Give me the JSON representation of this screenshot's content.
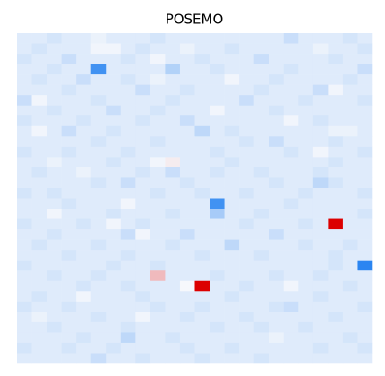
{
  "chart_data": {
    "type": "heatmap",
    "title": "POSEMO",
    "vlim": [
      -1,
      1
    ],
    "colors": {
      "negative": "#1478f0",
      "positive": "#dc0000"
    },
    "values": [
      [
        -0.1,
        -0.1,
        -0.15,
        -0.1,
        -0.1,
        -0.05,
        -0.1,
        -0.1,
        -0.1,
        -0.15,
        -0.1,
        -0.1,
        -0.1,
        -0.1,
        -0.1,
        -0.1,
        -0.1,
        -0.1,
        -0.2,
        -0.1,
        -0.1,
        -0.1,
        -0.15,
        -0.1
      ],
      [
        -0.1,
        -0.15,
        -0.1,
        -0.1,
        -0.1,
        -0.02,
        -0.02,
        -0.1,
        -0.15,
        -0.1,
        -0.1,
        -0.05,
        -0.1,
        -0.1,
        -0.15,
        -0.1,
        -0.1,
        -0.1,
        -0.1,
        -0.1,
        -0.05,
        -0.1,
        -0.1,
        -0.15
      ],
      [
        -0.15,
        -0.1,
        -0.1,
        -0.2,
        -0.1,
        -0.1,
        -0.1,
        -0.15,
        -0.1,
        -0.02,
        -0.1,
        -0.1,
        -0.15,
        -0.1,
        -0.1,
        -0.1,
        -0.2,
        -0.1,
        -0.1,
        -0.1,
        -0.1,
        -0.15,
        -0.1,
        -0.1
      ],
      [
        -0.1,
        -0.1,
        -0.15,
        -0.1,
        -0.1,
        -0.8,
        -0.1,
        -0.1,
        -0.1,
        -0.1,
        -0.3,
        -0.1,
        -0.1,
        -0.15,
        -0.1,
        -0.1,
        -0.1,
        -0.1,
        -0.15,
        -0.1,
        -0.1,
        -0.1,
        -0.1,
        -0.2
      ],
      [
        -0.1,
        -0.15,
        -0.1,
        -0.1,
        -0.2,
        -0.1,
        -0.1,
        -0.15,
        -0.1,
        -0.05,
        -0.1,
        -0.1,
        -0.1,
        -0.1,
        -0.02,
        -0.1,
        -0.1,
        -0.15,
        -0.1,
        -0.1,
        -0.1,
        -0.1,
        -0.15,
        -0.1
      ],
      [
        -0.1,
        -0.1,
        -0.1,
        -0.15,
        -0.1,
        -0.1,
        -0.1,
        -0.1,
        -0.2,
        -0.1,
        -0.1,
        -0.15,
        -0.1,
        -0.1,
        -0.1,
        -0.1,
        -0.15,
        -0.1,
        -0.1,
        -0.1,
        -0.2,
        -0.02,
        -0.1,
        -0.1
      ],
      [
        -0.2,
        -0.02,
        -0.1,
        -0.1,
        -0.1,
        -0.15,
        -0.1,
        -0.1,
        -0.1,
        -0.1,
        -0.15,
        -0.1,
        -0.1,
        -0.1,
        -0.1,
        -0.2,
        -0.1,
        -0.1,
        -0.1,
        -0.15,
        -0.1,
        -0.1,
        -0.1,
        -0.15
      ],
      [
        -0.1,
        -0.1,
        -0.15,
        -0.1,
        -0.1,
        -0.1,
        -0.2,
        -0.1,
        -0.1,
        -0.15,
        -0.1,
        -0.1,
        -0.1,
        -0.02,
        -0.1,
        -0.1,
        -0.1,
        -0.15,
        -0.1,
        -0.1,
        -0.1,
        -0.1,
        -0.1,
        -0.1
      ],
      [
        -0.15,
        -0.1,
        -0.1,
        -0.1,
        -0.15,
        -0.1,
        -0.1,
        -0.1,
        -0.15,
        -0.1,
        -0.1,
        -0.2,
        -0.1,
        -0.1,
        -0.1,
        -0.1,
        -0.1,
        -0.1,
        -0.02,
        -0.1,
        -0.15,
        -0.1,
        -0.1,
        -0.1
      ],
      [
        -0.1,
        -0.02,
        -0.1,
        -0.2,
        -0.1,
        -0.1,
        -0.15,
        -0.1,
        -0.1,
        -0.1,
        -0.1,
        -0.1,
        -0.25,
        -0.1,
        -0.15,
        -0.1,
        -0.1,
        -0.1,
        -0.1,
        -0.1,
        -0.1,
        -0.05,
        -0.05,
        -0.1
      ],
      [
        -0.1,
        -0.1,
        -0.1,
        -0.1,
        -0.1,
        -0.15,
        -0.1,
        -0.1,
        -0.1,
        -0.15,
        -0.1,
        -0.1,
        -0.1,
        -0.1,
        -0.1,
        -0.15,
        -0.1,
        -0.2,
        -0.1,
        -0.1,
        -0.1,
        -0.15,
        -0.1,
        -0.1
      ],
      [
        -0.15,
        -0.1,
        -0.1,
        -0.15,
        -0.1,
        -0.1,
        -0.1,
        -0.15,
        -0.1,
        -0.1,
        -0.1,
        -0.1,
        -0.1,
        -0.15,
        -0.1,
        -0.1,
        -0.1,
        -0.1,
        -0.15,
        -0.1,
        -0.02,
        -0.1,
        -0.1,
        -0.15
      ],
      [
        -0.1,
        -0.1,
        -0.05,
        -0.1,
        -0.1,
        -0.1,
        -0.15,
        -0.1,
        -0.1,
        -0.02,
        0.05,
        -0.1,
        -0.1,
        -0.1,
        -0.15,
        -0.1,
        -0.1,
        -0.1,
        -0.1,
        -0.1,
        -0.1,
        -0.15,
        -0.1,
        -0.1
      ],
      [
        -0.1,
        -0.15,
        -0.1,
        -0.1,
        -0.05,
        -0.1,
        -0.1,
        -0.1,
        -0.15,
        -0.1,
        -0.2,
        -0.1,
        -0.1,
        -0.15,
        -0.1,
        -0.1,
        -0.15,
        -0.1,
        -0.1,
        -0.1,
        -0.15,
        -0.1,
        -0.1,
        -0.1
      ],
      [
        -0.1,
        -0.1,
        -0.1,
        -0.1,
        -0.1,
        -0.15,
        -0.1,
        -0.2,
        -0.1,
        -0.1,
        -0.1,
        -0.15,
        -0.1,
        -0.1,
        -0.1,
        -0.1,
        -0.1,
        -0.15,
        -0.1,
        -0.1,
        -0.25,
        -0.15,
        -0.1,
        -0.1
      ],
      [
        -0.15,
        -0.1,
        -0.15,
        -0.1,
        -0.1,
        -0.1,
        -0.1,
        -0.1,
        -0.1,
        -0.15,
        -0.1,
        -0.1,
        -0.15,
        -0.1,
        -0.1,
        -0.15,
        -0.1,
        -0.1,
        -0.1,
        -0.15,
        -0.1,
        -0.1,
        -0.1,
        -0.15
      ],
      [
        -0.1,
        -0.1,
        -0.1,
        -0.15,
        -0.1,
        -0.1,
        -0.1,
        -0.02,
        -0.1,
        -0.1,
        -0.1,
        -0.1,
        -0.1,
        -0.8,
        -0.1,
        -0.1,
        -0.1,
        -0.1,
        -0.15,
        -0.1,
        -0.1,
        -0.1,
        -0.1,
        -0.1
      ],
      [
        -0.1,
        -0.1,
        -0.02,
        -0.1,
        -0.1,
        -0.1,
        -0.15,
        -0.1,
        -0.1,
        -0.1,
        -0.15,
        -0.1,
        -0.1,
        -0.35,
        -0.1,
        -0.1,
        -0.15,
        -0.1,
        -0.1,
        -0.1,
        -0.1,
        -0.1,
        -0.1,
        -0.15
      ],
      [
        -0.15,
        -0.1,
        -0.1,
        -0.1,
        -0.15,
        -0.1,
        -0.02,
        -0.1,
        -0.15,
        -0.1,
        -0.1,
        -0.1,
        -0.1,
        -0.1,
        -0.1,
        -0.15,
        -0.1,
        -0.1,
        -0.1,
        -0.15,
        -0.1,
        1,
        -0.1,
        -0.1
      ],
      [
        -0.1,
        -0.1,
        -0.15,
        -0.1,
        -0.1,
        -0.1,
        -0.1,
        -0.2,
        -0.02,
        -0.1,
        -0.1,
        -0.2,
        -0.1,
        -0.1,
        -0.1,
        -0.1,
        -0.1,
        -0.2,
        -0.1,
        -0.1,
        -0.1,
        -0.1,
        -0.1,
        -0.1
      ],
      [
        -0.1,
        -0.15,
        -0.1,
        -0.1,
        -0.1,
        -0.15,
        -0.1,
        -0.1,
        -0.1,
        -0.1,
        -0.15,
        -0.1,
        -0.1,
        -0.1,
        -0.25,
        -0.1,
        -0.1,
        -0.1,
        -0.1,
        -0.15,
        -0.1,
        -0.1,
        -0.15,
        -0.1
      ],
      [
        -0.1,
        -0.1,
        -0.1,
        -0.15,
        -0.1,
        -0.1,
        -0.1,
        -0.15,
        -0.1,
        -0.1,
        -0.1,
        -0.1,
        -0.15,
        -0.1,
        -0.1,
        -0.1,
        -0.15,
        -0.1,
        -0.1,
        -0.1,
        -0.1,
        -0.15,
        -0.1,
        -0.1
      ],
      [
        -0.15,
        -0.1,
        -0.1,
        -0.1,
        -0.1,
        -0.1,
        -0.15,
        -0.1,
        -0.1,
        -0.15,
        -0.1,
        -0.1,
        -0.1,
        -0.1,
        -0.1,
        -0.1,
        -0.1,
        -0.1,
        -0.1,
        -0.1,
        -0.1,
        -0.15,
        -0.1,
        -0.9
      ],
      [
        -0.1,
        -0.1,
        -0.15,
        -0.1,
        -0.1,
        -0.15,
        -0.1,
        -0.1,
        -0.1,
        0.25,
        -0.1,
        -0.1,
        -0.1,
        -0.15,
        -0.1,
        -0.1,
        -0.1,
        -0.15,
        -0.1,
        -0.1,
        -0.15,
        -0.1,
        -0.1,
        -0.1
      ],
      [
        -0.1,
        -0.1,
        -0.1,
        -0.1,
        -0.15,
        -0.1,
        -0.1,
        -0.15,
        -0.1,
        -0.1,
        -0.1,
        0,
        1,
        -0.1,
        -0.1,
        -0.15,
        -0.1,
        -0.1,
        -0.02,
        -0.1,
        -0.1,
        -0.1,
        -0.15,
        -0.1
      ],
      [
        -0.1,
        -0.15,
        -0.1,
        -0.1,
        -0.02,
        -0.1,
        -0.1,
        -0.1,
        -0.15,
        -0.1,
        -0.1,
        -0.1,
        -0.1,
        -0.1,
        -0.15,
        -0.1,
        -0.1,
        -0.1,
        -0.1,
        -0.1,
        -0.15,
        -0.1,
        -0.1,
        -0.1
      ],
      [
        -0.15,
        -0.1,
        -0.1,
        -0.15,
        -0.1,
        -0.1,
        -0.1,
        -0.1,
        -0.1,
        -0.15,
        -0.1,
        -0.1,
        -0.15,
        -0.1,
        -0.1,
        -0.1,
        -0.1,
        -0.15,
        -0.2,
        -0.1,
        -0.1,
        -0.1,
        -0.1,
        -0.15
      ],
      [
        -0.1,
        -0.05,
        -0.1,
        -0.1,
        -0.1,
        -0.15,
        -0.1,
        -0.1,
        -0.02,
        -0.1,
        -0.1,
        -0.15,
        -0.1,
        -0.1,
        -0.1,
        -0.15,
        -0.1,
        -0.1,
        -0.1,
        -0.1,
        -0.1,
        -0.15,
        -0.1,
        -0.1
      ],
      [
        -0.1,
        -0.1,
        -0.15,
        -0.1,
        -0.1,
        -0.1,
        -0.1,
        -0.15,
        -0.1,
        -0.1,
        -0.1,
        -0.1,
        -0.1,
        -0.15,
        -0.1,
        -0.1,
        -0.15,
        -0.1,
        -0.1,
        -0.15,
        -0.1,
        -0.1,
        -0.1,
        -0.1
      ],
      [
        -0.1,
        -0.1,
        -0.1,
        -0.1,
        -0.15,
        -0.1,
        -0.1,
        -0.25,
        -0.1,
        -0.1,
        -0.15,
        -0.1,
        -0.1,
        -0.1,
        -0.1,
        -0.1,
        -0.1,
        -0.05,
        -0.1,
        -0.1,
        -0.1,
        -0.1,
        -0.15,
        -0.1
      ],
      [
        -0.15,
        -0.1,
        -0.1,
        -0.15,
        -0.1,
        -0.1,
        -0.15,
        -0.1,
        -0.1,
        -0.1,
        -0.1,
        -0.15,
        -0.1,
        -0.1,
        -0.15,
        -0.1,
        -0.1,
        -0.1,
        -0.1,
        -0.1,
        -0.15,
        -0.1,
        -0.1,
        -0.15
      ],
      [
        -0.1,
        -0.1,
        -0.1,
        -0.1,
        -0.1,
        -0.2,
        -0.1,
        -0.1,
        -0.15,
        -0.1,
        -0.1,
        -0.1,
        -0.15,
        -0.1,
        -0.1,
        -0.1,
        -0.15,
        -0.1,
        -0.1,
        -0.1,
        -0.1,
        -0.1,
        -0.1,
        -0.1
      ]
    ]
  }
}
